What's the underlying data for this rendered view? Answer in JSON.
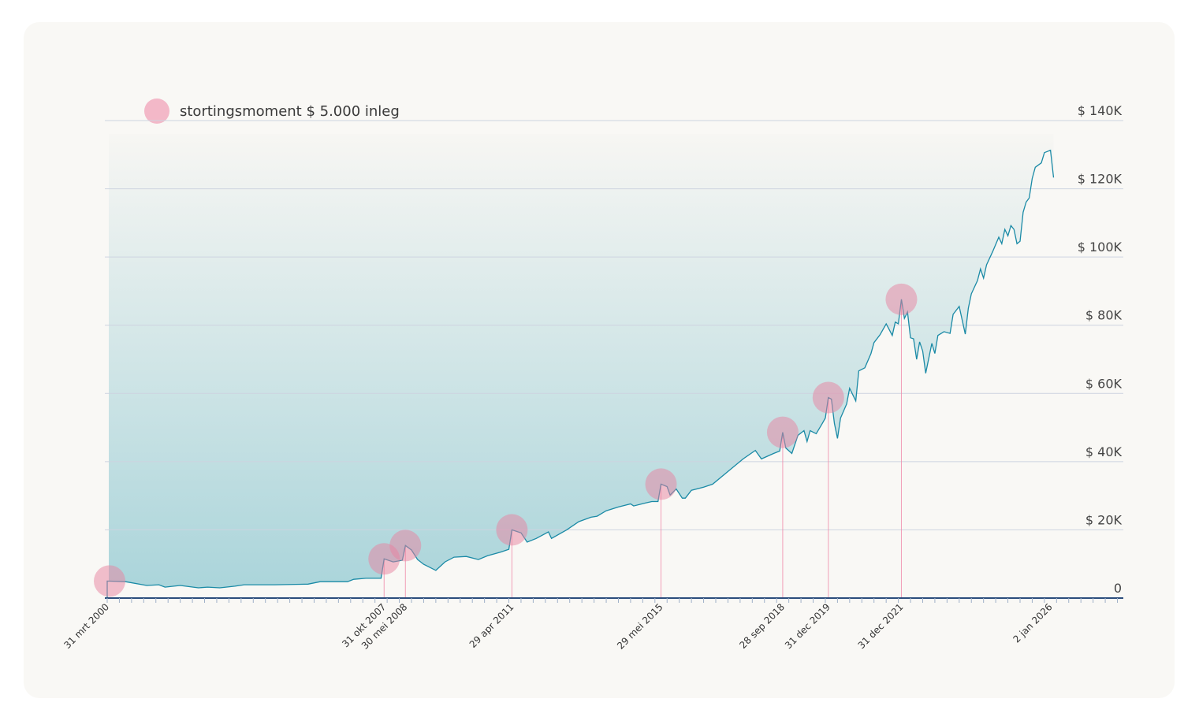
{
  "legend": {
    "label": "stortingsmoment $ 5.000 inleg",
    "marker_color": "#f3b8c8"
  },
  "chart_data": {
    "type": "area",
    "title": "",
    "xlabel": "",
    "ylabel": "",
    "ylim": [
      0,
      140000
    ],
    "y_ticks": [
      {
        "value": 0,
        "label": "0"
      },
      {
        "value": 20000,
        "label": "$ 20K"
      },
      {
        "value": 40000,
        "label": "$ 40K"
      },
      {
        "value": 60000,
        "label": "$ 60K"
      },
      {
        "value": 80000,
        "label": "$ 80K"
      },
      {
        "value": 100000,
        "label": "$ 100K"
      },
      {
        "value": 120000,
        "label": "$ 120K"
      },
      {
        "value": 140000,
        "label": "$ 140K"
      }
    ],
    "y_axis_position": "right",
    "grid": true,
    "legend_position": "top-left",
    "colors": {
      "line": "#1a8aa6",
      "fill_bottom": "#a9d4da",
      "marker": "#e8819f",
      "deposit_line": "#f08aa8",
      "baseline": "#2c4d7c"
    },
    "deposits": [
      {
        "date": "2000-03",
        "label": "31 mrt 2000",
        "value": 5000
      },
      {
        "date": "2007-10",
        "label": "31 okt 2007",
        "value": 11500
      },
      {
        "date": "2008-05",
        "label": "30 mei 2008",
        "value": 15400
      },
      {
        "date": "2011-04",
        "label": "29 apr 2011",
        "value": 20000
      },
      {
        "date": "2015-05",
        "label": "29 mei 2015",
        "value": 33400
      },
      {
        "date": "2018-09",
        "label": "28 sep 2018",
        "value": 48600
      },
      {
        "date": "2019-12",
        "label": "31 dec 2019",
        "value": 58800
      },
      {
        "date": "2021-12",
        "label": "31 dec 2021",
        "value": 87600
      }
    ],
    "extra_x_labels": [
      {
        "date": "2026-01",
        "label": "2 jan 2026"
      }
    ],
    "series": [
      {
        "points": [
          [
            "2000-03",
            5000
          ],
          [
            "2000-09",
            4800
          ],
          [
            "2001-04",
            3700
          ],
          [
            "2001-08",
            3900
          ],
          [
            "2001-10",
            3200
          ],
          [
            "2002-03",
            3700
          ],
          [
            "2002-09",
            3000
          ],
          [
            "2002-12",
            3200
          ],
          [
            "2003-04",
            3000
          ],
          [
            "2003-09",
            3500
          ],
          [
            "2003-12",
            3900
          ],
          [
            "2004-10",
            3900
          ],
          [
            "2005-09",
            4100
          ],
          [
            "2006-01",
            4800
          ],
          [
            "2006-10",
            4800
          ],
          [
            "2006-12",
            5500
          ],
          [
            "2007-04",
            5800
          ],
          [
            "2007-09",
            5800
          ],
          [
            "2007-10",
            11500
          ],
          [
            "2008-01",
            10600
          ],
          [
            "2008-04",
            11100
          ],
          [
            "2008-05",
            15400
          ],
          [
            "2008-07",
            14100
          ],
          [
            "2008-09",
            11300
          ],
          [
            "2008-11",
            9900
          ],
          [
            "2009-03",
            8100
          ],
          [
            "2009-06",
            10600
          ],
          [
            "2009-09",
            12000
          ],
          [
            "2010-01",
            12200
          ],
          [
            "2010-05",
            11300
          ],
          [
            "2010-08",
            12400
          ],
          [
            "2010-12",
            13400
          ],
          [
            "2011-03",
            14300
          ],
          [
            "2011-04",
            20000
          ],
          [
            "2011-07",
            19100
          ],
          [
            "2011-09",
            16400
          ],
          [
            "2011-12",
            17500
          ],
          [
            "2012-04",
            19400
          ],
          [
            "2012-05",
            17500
          ],
          [
            "2012-10",
            20000
          ],
          [
            "2013-02",
            22400
          ],
          [
            "2013-06",
            23700
          ],
          [
            "2013-08",
            24000
          ],
          [
            "2013-11",
            25600
          ],
          [
            "2014-03",
            26700
          ],
          [
            "2014-07",
            27600
          ],
          [
            "2014-08",
            27000
          ],
          [
            "2014-12",
            27900
          ],
          [
            "2015-02",
            28300
          ],
          [
            "2015-04",
            28300
          ],
          [
            "2015-05",
            33400
          ],
          [
            "2015-07",
            32700
          ],
          [
            "2015-08",
            30200
          ],
          [
            "2015-10",
            32000
          ],
          [
            "2015-12",
            29300
          ],
          [
            "2016-01",
            29300
          ],
          [
            "2016-03",
            31600
          ],
          [
            "2016-07",
            32500
          ],
          [
            "2016-10",
            33400
          ],
          [
            "2017-03",
            37100
          ],
          [
            "2017-08",
            40800
          ],
          [
            "2017-12",
            43300
          ],
          [
            "2018-02",
            40800
          ],
          [
            "2018-06",
            42400
          ],
          [
            "2018-08",
            43100
          ],
          [
            "2018-09",
            48600
          ],
          [
            "2018-10",
            44000
          ],
          [
            "2018-12",
            42400
          ],
          [
            "2019-02",
            47700
          ],
          [
            "2019-04",
            49100
          ],
          [
            "2019-05",
            45900
          ],
          [
            "2019-06",
            49100
          ],
          [
            "2019-08",
            48200
          ],
          [
            "2019-10",
            51200
          ],
          [
            "2019-11",
            52800
          ],
          [
            "2019-12",
            58800
          ],
          [
            "2020-01",
            58300
          ],
          [
            "2020-02",
            51200
          ],
          [
            "2020-03",
            46800
          ],
          [
            "2020-04",
            52800
          ],
          [
            "2020-06",
            56900
          ],
          [
            "2020-07",
            61500
          ],
          [
            "2020-09",
            57800
          ],
          [
            "2020-10",
            66600
          ],
          [
            "2020-12",
            67500
          ],
          [
            "2021-02",
            71700
          ],
          [
            "2021-03",
            74900
          ],
          [
            "2021-05",
            77200
          ],
          [
            "2021-07",
            80400
          ],
          [
            "2021-09",
            77000
          ],
          [
            "2021-10",
            80900
          ],
          [
            "2021-11",
            80400
          ],
          [
            "2021-12",
            87600
          ],
          [
            "2022-01",
            82000
          ],
          [
            "2022-02",
            83900
          ],
          [
            "2022-03",
            76300
          ],
          [
            "2022-04",
            76000
          ],
          [
            "2022-05",
            70000
          ],
          [
            "2022-06",
            75100
          ],
          [
            "2022-07",
            72400
          ],
          [
            "2022-08",
            65900
          ],
          [
            "2022-10",
            74700
          ],
          [
            "2022-11",
            71700
          ],
          [
            "2022-12",
            77000
          ],
          [
            "2023-02",
            78100
          ],
          [
            "2023-04",
            77600
          ],
          [
            "2023-05",
            83200
          ],
          [
            "2023-07",
            85500
          ],
          [
            "2023-09",
            77400
          ],
          [
            "2023-10",
            85000
          ],
          [
            "2023-11",
            89200
          ],
          [
            "2024-01",
            93100
          ],
          [
            "2024-02",
            96500
          ],
          [
            "2024-03",
            93800
          ],
          [
            "2024-04",
            97700
          ],
          [
            "2024-06",
            101600
          ],
          [
            "2024-08",
            105800
          ],
          [
            "2024-09",
            103900
          ],
          [
            "2024-10",
            108100
          ],
          [
            "2024-11",
            106200
          ],
          [
            "2024-12",
            109200
          ],
          [
            "2025-01",
            108100
          ],
          [
            "2025-02",
            103900
          ],
          [
            "2025-03",
            104600
          ],
          [
            "2025-04",
            113100
          ],
          [
            "2025-05",
            116100
          ],
          [
            "2025-06",
            117300
          ],
          [
            "2025-07",
            123000
          ],
          [
            "2025-08",
            126300
          ],
          [
            "2025-10",
            127600
          ],
          [
            "2025-11",
            130600
          ],
          [
            "2026-01",
            131300
          ],
          [
            "2026-02",
            123300
          ]
        ]
      }
    ]
  }
}
